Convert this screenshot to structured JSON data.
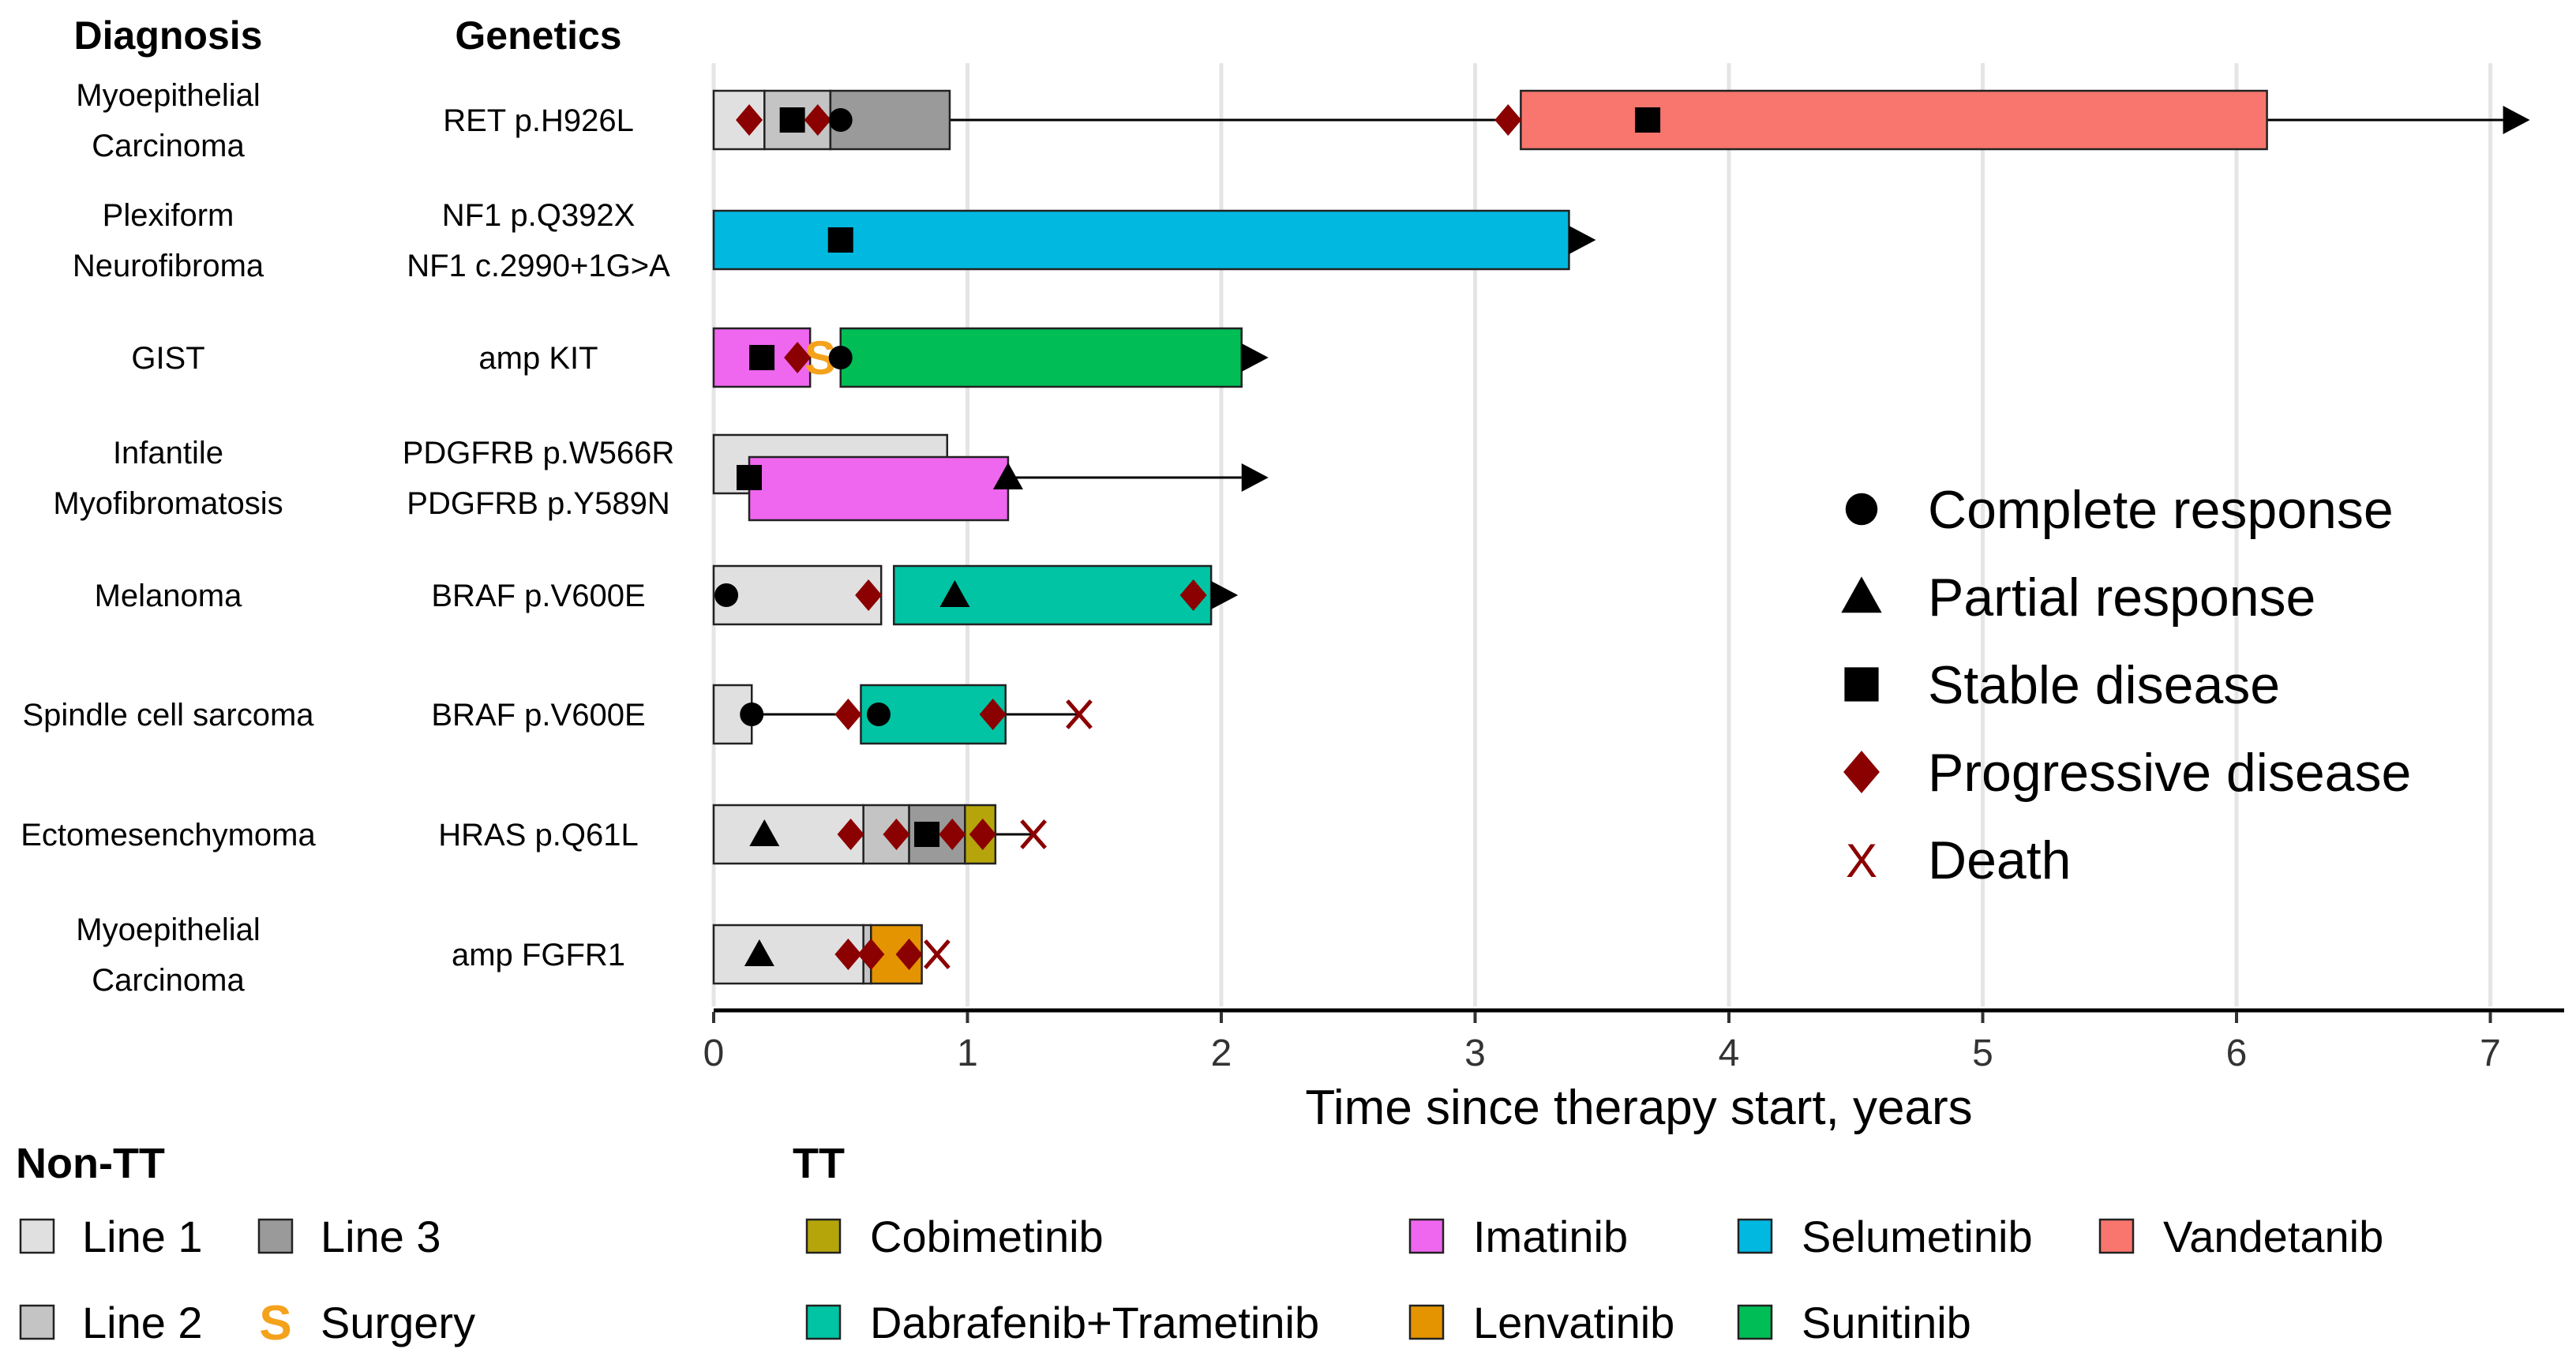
{
  "chart_data": {
    "type": "swimmer",
    "title": "",
    "xlabel": "Time since therapy start, years",
    "ylabel": "",
    "xlim": [
      0,
      7.3
    ],
    "xticks": [
      0,
      1,
      2,
      3,
      4,
      5,
      6,
      7
    ],
    "column_headers": {
      "diagnosis": "Diagnosis",
      "genetics": "Genetics"
    },
    "therapy_colors": {
      "Line 1": "#e0e0e0",
      "Line 2": "#c4c4c4",
      "Line 3": "#9a9a9a",
      "Cobimetinib": "#b5a50a",
      "Dabrafenib+Trametinib": "#00c4a4",
      "Imatinib": "#ef66ef",
      "Lenvatinib": "#e49400",
      "Selumetinib": "#00b8e0",
      "Sunitinib": "#00bd55",
      "Vandetanib": "#f8766d"
    },
    "colors": {
      "progressive": "#8b0000",
      "death": "#8b0000",
      "surgery": "#f4a21c",
      "marker": "#000000"
    },
    "patients": [
      {
        "diagnosis": [
          "Myoepithelial",
          "Carcinoma"
        ],
        "genetics": [
          "RET p.H926L"
        ],
        "bars": [
          {
            "therapy": "Line 1",
            "start": 0,
            "end": 0.2
          },
          {
            "therapy": "Line 2",
            "start": 0.2,
            "end": 0.46
          },
          {
            "therapy": "Line 3",
            "start": 0.46,
            "end": 0.93
          },
          {
            "therapy": "Vandetanib",
            "start": 3.18,
            "end": 6.12
          }
        ],
        "lines": [
          {
            "start": 0.93,
            "end": 3.18
          },
          {
            "start": 6.12,
            "end": 7.05
          }
        ],
        "markers": [
          {
            "type": "progressive",
            "t": 0.14
          },
          {
            "type": "stable",
            "t": 0.31
          },
          {
            "type": "progressive",
            "t": 0.41
          },
          {
            "type": "complete",
            "t": 0.5
          },
          {
            "type": "progressive",
            "t": 3.13
          },
          {
            "type": "stable",
            "t": 3.68
          }
        ],
        "arrow": 7.05
      },
      {
        "diagnosis": [
          "Plexiform",
          "Neurofibroma"
        ],
        "genetics": [
          "NF1 p.Q392X",
          "NF1 c.2990+1G>A"
        ],
        "bars": [
          {
            "therapy": "Selumetinib",
            "start": 0,
            "end": 3.37
          }
        ],
        "lines": [],
        "markers": [
          {
            "type": "stable",
            "t": 0.5
          }
        ],
        "arrow": 3.37
      },
      {
        "diagnosis": [
          "GIST"
        ],
        "genetics": [
          "amp KIT"
        ],
        "bars": [
          {
            "therapy": "Imatinib",
            "start": 0,
            "end": 0.38
          },
          {
            "therapy": "Sunitinib",
            "start": 0.5,
            "end": 2.08
          }
        ],
        "lines": [],
        "markers": [
          {
            "type": "stable",
            "t": 0.19
          },
          {
            "type": "progressive",
            "t": 0.33
          },
          {
            "type": "surgery",
            "t": 0.42
          },
          {
            "type": "complete",
            "t": 0.5
          }
        ],
        "arrow": 2.08
      },
      {
        "diagnosis": [
          "Infantile",
          "Myofibromatosis"
        ],
        "genetics": [
          "PDGFRB p.W566R",
          "PDGFRB p.Y589N"
        ],
        "bars": [
          {
            "therapy": "Line 1",
            "start": 0,
            "end": 0.92,
            "part": "upper"
          },
          {
            "therapy": "Imatinib",
            "start": 0.14,
            "end": 1.16,
            "part": "lower"
          }
        ],
        "lines": [
          {
            "start": 1.16,
            "end": 2.08
          }
        ],
        "markers": [
          {
            "type": "stable",
            "t": 0.14
          },
          {
            "type": "partial",
            "t": 1.16
          }
        ],
        "arrow": 2.08
      },
      {
        "diagnosis": [
          "Melanoma"
        ],
        "genetics": [
          "BRAF p.V600E"
        ],
        "bars": [
          {
            "therapy": "Line 1",
            "start": 0,
            "end": 0.66
          },
          {
            "therapy": "Dabrafenib+Trametinib",
            "start": 0.71,
            "end": 1.96
          }
        ],
        "lines": [],
        "markers": [
          {
            "type": "complete",
            "t": 0.05
          },
          {
            "type": "progressive",
            "t": 0.61
          },
          {
            "type": "partial",
            "t": 0.95
          },
          {
            "type": "progressive",
            "t": 1.89
          }
        ],
        "arrow": 1.96
      },
      {
        "diagnosis": [
          "Spindle cell sarcoma"
        ],
        "genetics": [
          "BRAF p.V600E"
        ],
        "bars": [
          {
            "therapy": "Line 1",
            "start": 0,
            "end": 0.15
          },
          {
            "therapy": "Dabrafenib+Trametinib",
            "start": 0.58,
            "end": 1.15
          }
        ],
        "lines": [
          {
            "start": 0.15,
            "end": 0.58
          },
          {
            "start": 1.15,
            "end": 1.44
          }
        ],
        "markers": [
          {
            "type": "complete",
            "t": 0.15
          },
          {
            "type": "progressive",
            "t": 0.53
          },
          {
            "type": "complete",
            "t": 0.65
          },
          {
            "type": "progressive",
            "t": 1.1
          },
          {
            "type": "death",
            "t": 1.44
          }
        ],
        "arrow": null
      },
      {
        "diagnosis": [
          "Ectomesenchymoma"
        ],
        "genetics": [
          "HRAS p.Q61L"
        ],
        "bars": [
          {
            "therapy": "Line 1",
            "start": 0,
            "end": 0.59
          },
          {
            "therapy": "Line 2",
            "start": 0.59,
            "end": 0.77
          },
          {
            "therapy": "Line 3",
            "start": 0.77,
            "end": 0.99
          },
          {
            "therapy": "Cobimetinib",
            "start": 0.99,
            "end": 1.11
          }
        ],
        "lines": [
          {
            "start": 1.11,
            "end": 1.26
          }
        ],
        "markers": [
          {
            "type": "partial",
            "t": 0.2
          },
          {
            "type": "progressive",
            "t": 0.54
          },
          {
            "type": "progressive",
            "t": 0.72
          },
          {
            "type": "stable",
            "t": 0.84
          },
          {
            "type": "progressive",
            "t": 0.94
          },
          {
            "type": "progressive",
            "t": 1.06
          },
          {
            "type": "death",
            "t": 1.26
          }
        ],
        "arrow": null
      },
      {
        "diagnosis": [
          "Myoepithelial",
          "Carcinoma"
        ],
        "genetics": [
          "amp FGFR1"
        ],
        "bars": [
          {
            "therapy": "Line 1",
            "start": 0,
            "end": 0.59
          },
          {
            "therapy": "Line 2",
            "start": 0.59,
            "end": 0.62
          },
          {
            "therapy": "Lenvatinib",
            "start": 0.62,
            "end": 0.82
          }
        ],
        "lines": [],
        "markers": [
          {
            "type": "partial",
            "t": 0.18
          },
          {
            "type": "progressive",
            "t": 0.53
          },
          {
            "type": "progressive",
            "t": 0.62
          },
          {
            "type": "progressive",
            "t": 0.77
          },
          {
            "type": "death",
            "t": 0.88
          }
        ],
        "arrow": null
      }
    ],
    "response_legend": [
      {
        "type": "complete",
        "label": "Complete response"
      },
      {
        "type": "partial",
        "label": "Partial response"
      },
      {
        "type": "stable",
        "label": "Stable disease"
      },
      {
        "type": "progressive",
        "label": "Progressive disease"
      },
      {
        "type": "death",
        "label": "Death",
        "symbol": "X"
      }
    ],
    "fill_legend": {
      "non_tt_title": "Non-TT",
      "tt_title": "TT",
      "non_tt": [
        {
          "label": "Line 1",
          "key": "Line 1"
        },
        {
          "label": "Line 3",
          "key": "Line 3"
        },
        {
          "label": "Line 2",
          "key": "Line 2"
        },
        {
          "label": "Surgery",
          "key": "surgery",
          "symbol": "S"
        }
      ],
      "tt": [
        {
          "label": "Cobimetinib",
          "key": "Cobimetinib"
        },
        {
          "label": "Imatinib",
          "key": "Imatinib"
        },
        {
          "label": "Selumetinib",
          "key": "Selumetinib"
        },
        {
          "label": "Vandetanib",
          "key": "Vandetanib"
        },
        {
          "label": "Dabrafenib+Trametinib",
          "key": "Dabrafenib+Trametinib"
        },
        {
          "label": "Lenvatinib",
          "key": "Lenvatinib"
        },
        {
          "label": "Sunitinib",
          "key": "Sunitinib"
        }
      ]
    }
  }
}
